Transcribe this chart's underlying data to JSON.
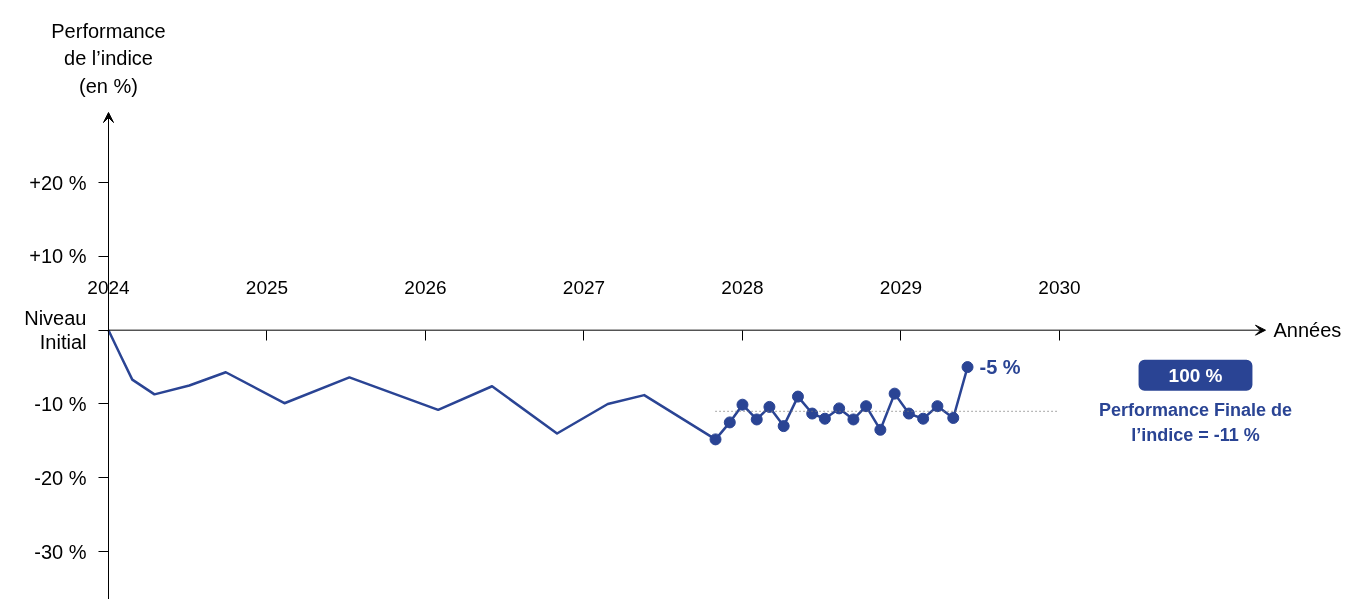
{
  "chart_data": {
    "type": "line",
    "ylabel": "Performance de l’indice (en %)",
    "xlabel": "Années",
    "xlim": [
      2024,
      2031.3
    ],
    "xticks": [
      2024,
      2025,
      2026,
      2027,
      2028,
      2029,
      2030
    ],
    "ylim": [
      -36.5,
      29.5
    ],
    "yticks": [
      {
        "value": 20,
        "label": "+20 %"
      },
      {
        "value": 10,
        "label": "+10 %"
      },
      {
        "value": 0,
        "label": "Niveau Initial"
      },
      {
        "value": -10,
        "label": "-10 %"
      },
      {
        "value": -20,
        "label": "-20 %"
      },
      {
        "value": -30,
        "label": "-30 %"
      }
    ],
    "grid": false,
    "line_style": "solid",
    "series": [
      {
        "color": "#2a4494",
        "marker": "none",
        "x": [
          2024,
          2024.08,
          2024.15,
          2024.29,
          2024.51,
          2024.74,
          2025.11,
          2025.52,
          2026.08,
          2026.42,
          2026.83,
          2027.15,
          2027.38,
          2027.83
        ],
        "values": [
          0,
          -3.6,
          -6.7,
          -8.7,
          -7.5,
          -5.7,
          -9.9,
          -6.4,
          -10.8,
          -7.6,
          -14.0,
          -10.0,
          -8.8,
          -14.8
        ]
      },
      {
        "color": "#2a4494",
        "marker": "circle",
        "x": [
          2027.83,
          2027.92,
          2028.0,
          2028.09,
          2028.17,
          2028.26,
          2028.35,
          2028.44,
          2028.52,
          2028.61,
          2028.7,
          2028.78,
          2028.87,
          2028.96,
          2029.05,
          2029.14,
          2029.23,
          2029.33,
          2029.42
        ],
        "values": [
          -14.8,
          -12.5,
          -10.1,
          -12.1,
          -10.4,
          -13.0,
          -9.0,
          -11.3,
          -12.0,
          -10.6,
          -12.1,
          -10.3,
          -13.5,
          -8.6,
          -11.3,
          -12.0,
          -10.3,
          -11.9,
          -5
        ]
      }
    ],
    "ref_lines": [
      {
        "axis": "y",
        "value": -11,
        "color": "#777777",
        "line_style": "dotted"
      }
    ],
    "annotations": [
      {
        "text": "-5 %",
        "x": 2029.42,
        "y": -5
      },
      "100 %",
      "Performance Finale de l’indice = -11 %"
    ]
  }
}
